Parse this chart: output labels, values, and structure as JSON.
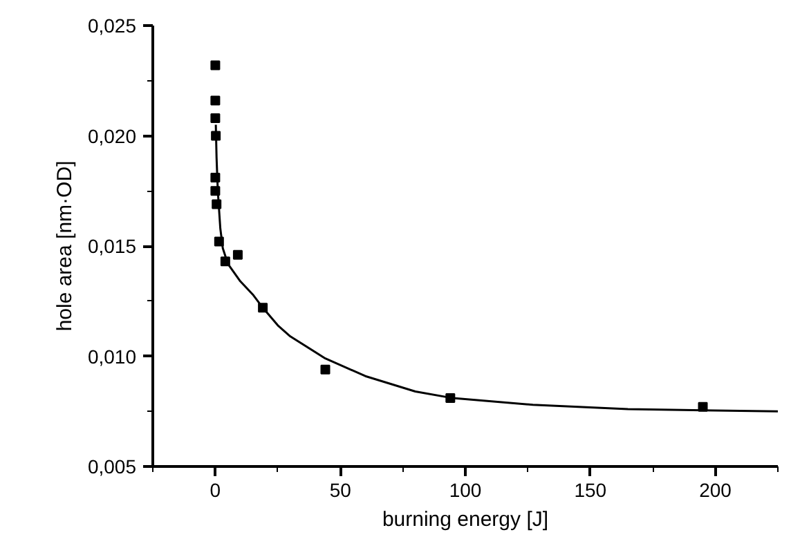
{
  "chart_data": {
    "type": "scatter",
    "xlabel": "burning energy [J]",
    "ylabel": "hole area [nm·OD]",
    "xlim": [
      -25,
      225
    ],
    "ylim": [
      0.005,
      0.025
    ],
    "xticks": [
      0,
      50,
      100,
      150,
      200
    ],
    "yticks": [
      {
        "value": 0.005,
        "label": "0,005"
      },
      {
        "value": 0.01,
        "label": "0,010"
      },
      {
        "value": 0.015,
        "label": "0,015"
      },
      {
        "value": 0.02,
        "label": "0,020"
      },
      {
        "value": 0.025,
        "label": "0,025"
      }
    ],
    "grid": false,
    "marker": "square",
    "series": [
      {
        "color": "#000000",
        "x": [
          0,
          0,
          0,
          0.2,
          0,
          0,
          0.5,
          1.5,
          4,
          9,
          19,
          44,
          94,
          195
        ],
        "values": [
          0.0232,
          0.0216,
          0.0208,
          0.02,
          0.0181,
          0.0175,
          0.0169,
          0.0152,
          0.0143,
          0.0146,
          0.0122,
          0.0094,
          0.0081,
          0.0077
        ]
      },
      {
        "type": "line",
        "marker": "none",
        "color": "#000000",
        "x": [
          0.2,
          0.5,
          1,
          2,
          3,
          5,
          10,
          15,
          19,
          25,
          30,
          44,
          60,
          80,
          95,
          127,
          165,
          225
        ],
        "values": [
          0.0205,
          0.019,
          0.0175,
          0.0158,
          0.0149,
          0.0142,
          0.0134,
          0.0128,
          0.0122,
          0.0114,
          0.0109,
          0.0099,
          0.0091,
          0.0084,
          0.0081,
          0.0078,
          0.0076,
          0.0075
        ]
      }
    ]
  }
}
